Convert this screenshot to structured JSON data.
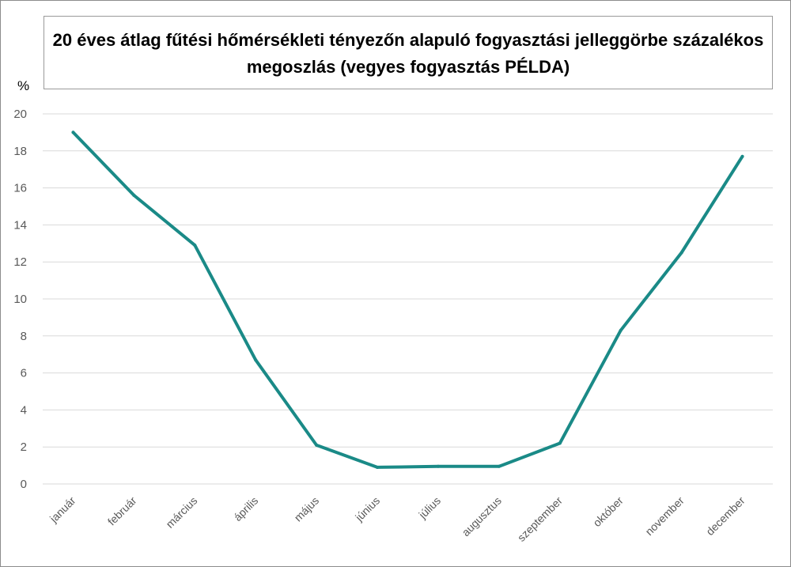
{
  "chart_data": {
    "type": "line",
    "title": "20 éves átlag fűtési hőmérsékleti tényezőn alapuló fogyasztási jelleggörbe százalékos megoszlás (vegyes fogyasztás PÉLDA)",
    "xlabel": "",
    "ylabel": "%",
    "categories": [
      "január",
      "február",
      "március",
      "április",
      "május",
      "június",
      "július",
      "augusztus",
      "szeptember",
      "október",
      "november",
      "december"
    ],
    "series": [
      {
        "values": [
          19.0,
          15.6,
          12.9,
          6.7,
          2.1,
          0.9,
          0.95,
          0.95,
          2.2,
          8.3,
          12.5,
          17.7
        ],
        "color": "#1a8a87"
      }
    ],
    "ylim": [
      0,
      20
    ],
    "yticks": [
      "0",
      "2",
      "4",
      "6",
      "8",
      "10",
      "12",
      "14",
      "16",
      "18",
      "20"
    ],
    "grid": true,
    "legend": "none"
  }
}
